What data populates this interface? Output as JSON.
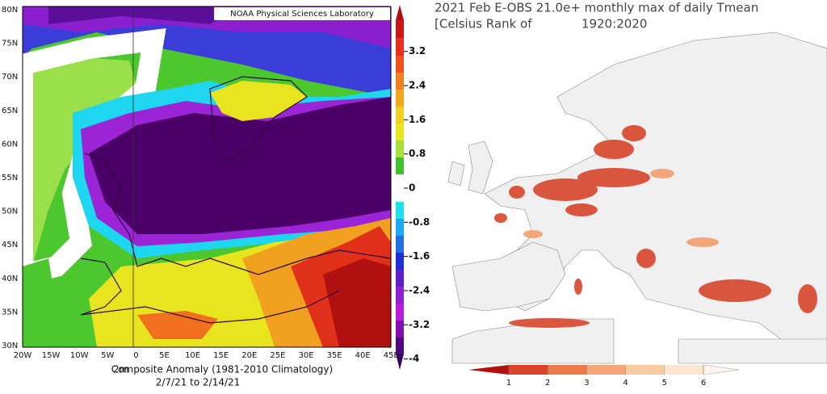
{
  "left_map": {
    "attribution": "NOAA Physical Sciences Laboratory",
    "lat_labels": [
      "80N",
      "75N",
      "70N",
      "65N",
      "60N",
      "55N",
      "50N",
      "45N",
      "40N",
      "35N",
      "30N"
    ],
    "lon_labels": [
      "20W",
      "15W",
      "10W",
      "5W",
      "0",
      "5E",
      "10E",
      "15E",
      "20E",
      "25E",
      "30E",
      "35E",
      "40E",
      "45E"
    ],
    "colorbar_ticks": [
      3.2,
      2.4,
      1.6,
      0.8,
      0,
      -0.8,
      -1.6,
      -2.4,
      -3.2,
      -4
    ],
    "caption_variable": "2m",
    "caption_line1": "Composite Anomaly (1981-2010 Climatology)",
    "caption_line2": "2/7/21 to 2/14/21"
  },
  "right_map": {
    "title": "2021 Feb E-OBS 21.0e+ monthly max of daily Tmean",
    "subtitle_left": "[Celsius Rank of",
    "subtitle_right": "1920:2020",
    "colorbar_ticks": [
      1,
      2,
      3,
      4,
      5,
      6
    ]
  }
}
